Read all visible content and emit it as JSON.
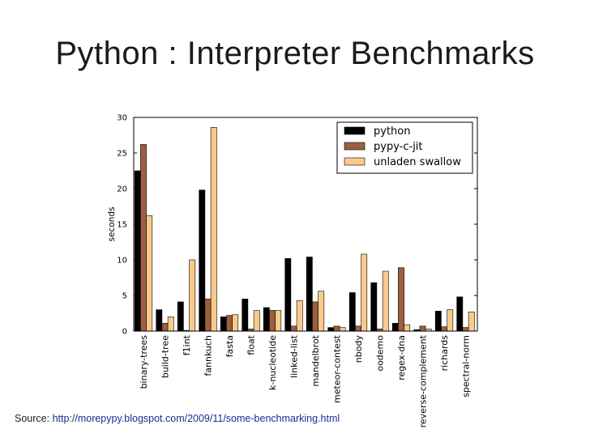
{
  "slide": {
    "title": "Python : Interpreter Benchmarks",
    "source_prefix": "Source: ",
    "source_url": "http://morepypy.blogspot.com/2009/11/some-benchmarking.html"
  },
  "colors": {
    "python": "#000000",
    "pypy": "#9c6040",
    "unladen": "#fbc98a"
  },
  "chart_data": {
    "type": "bar",
    "ylabel": "seconds",
    "xlabel": "",
    "ylim": [
      0,
      30
    ],
    "yticks": [
      0,
      5,
      10,
      15,
      20,
      25,
      30
    ],
    "legend_position": "top-right",
    "grid": false,
    "categories": [
      "binary-trees",
      "build-tree",
      "f1int",
      "fannkuch",
      "fasta",
      "float",
      "k-nucleotide",
      "linked-list",
      "mandelbrot",
      "meteor-contest",
      "nbody",
      "oodemo",
      "regex-dna",
      "reverse-complement",
      "richards",
      "spectral-norm"
    ],
    "series": [
      {
        "name": "python",
        "values": [
          22.5,
          3.0,
          4.1,
          19.8,
          2.0,
          4.5,
          3.3,
          10.2,
          10.4,
          0.5,
          5.4,
          6.8,
          1.1,
          0.2,
          2.8,
          4.8
        ]
      },
      {
        "name": "pypy-c-jit",
        "values": [
          26.2,
          1.1,
          0.1,
          4.5,
          2.2,
          0.3,
          2.9,
          0.7,
          4.1,
          0.7,
          0.7,
          0.3,
          8.9,
          0.7,
          0.6,
          0.5
        ]
      },
      {
        "name": "unladen swallow",
        "values": [
          16.2,
          2.0,
          10.0,
          28.6,
          2.3,
          2.9,
          2.9,
          4.3,
          5.6,
          0.5,
          10.8,
          8.4,
          0.9,
          0.3,
          3.0,
          2.7
        ]
      }
    ]
  }
}
